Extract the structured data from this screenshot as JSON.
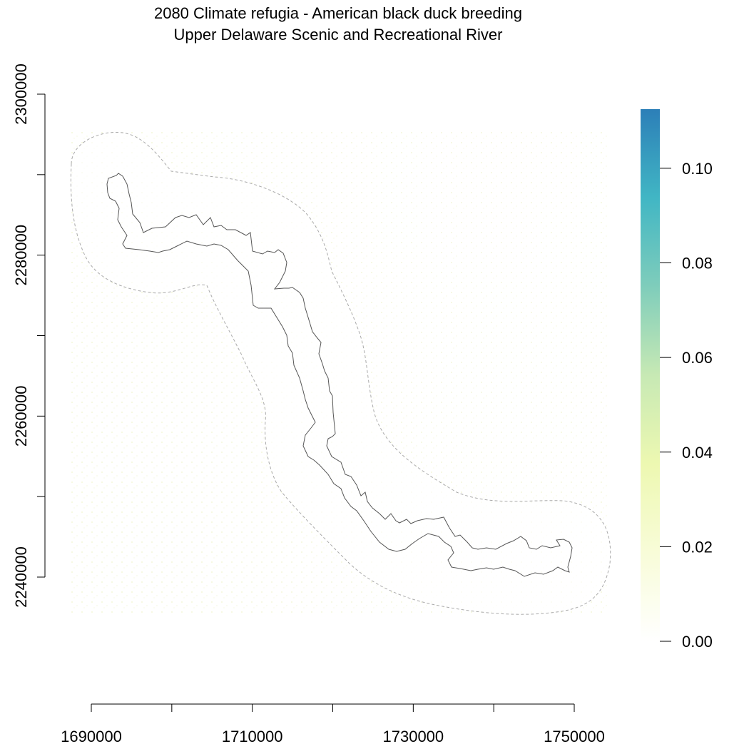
{
  "title": {
    "line1": "2080 Climate refugia - American black duck breeding",
    "line2": "Upper Delaware Scenic and Recreational River"
  },
  "x_axis": {
    "ticks": [
      1690000,
      1700000,
      1710000,
      1720000,
      1730000,
      1740000,
      1750000
    ],
    "labels": [
      "1690000",
      "",
      "1710000",
      "",
      "1730000",
      "",
      "1750000"
    ]
  },
  "y_axis": {
    "ticks": [
      2240000,
      2250000,
      2260000,
      2270000,
      2280000,
      2290000,
      2300000
    ],
    "labels": [
      "2240000",
      "",
      "2260000",
      "",
      "2280000",
      "",
      "2300000"
    ]
  },
  "legend": {
    "ticks": [
      0.0,
      0.02,
      0.04,
      0.06,
      0.08,
      0.1
    ],
    "labels": [
      "0.00",
      "0.02",
      "0.04",
      "0.06",
      "0.08",
      "0.10"
    ],
    "range": [
      0,
      0.1125
    ],
    "colors": [
      "#ffffff",
      "#f8fcd8",
      "#edf8b1",
      "#c7e9b4",
      "#7fcdbb",
      "#41b6c4",
      "#2c7fb8"
    ]
  },
  "map": {
    "raster_tint": "#eef4c8",
    "boundary_color": "#555555",
    "buffer_color": "#aaaaaa"
  }
}
